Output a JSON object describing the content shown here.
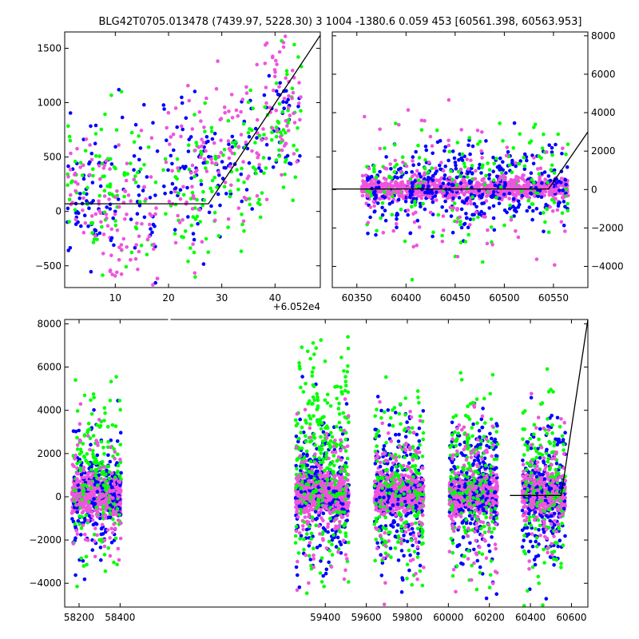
{
  "title": "BLG42T0705.013478 (7439.97, 5228.30)    3 1004 -1380.6 0.059 453 [60561.398, 60563.953]",
  "colors": {
    "green": "#00ff00",
    "blue": "#0000ff",
    "pink": "#ee55dd",
    "model": "#000000"
  },
  "chart_data": [
    {
      "panel": "zoom",
      "type": "scatter",
      "title": "",
      "x_offset_label": "+6.052e4",
      "xlim": [
        0.5,
        48.5
      ],
      "ylim": [
        -700,
        1650
      ],
      "xticks": [
        10,
        20,
        30,
        40
      ],
      "yticks": [
        -500,
        0,
        500,
        1000,
        1500
      ],
      "y_axis_side": "left",
      "point_clusters": [
        {
          "series": "blue",
          "x": [
            1,
            9
          ],
          "y_mean": 150,
          "y_sd": 300,
          "count": 55
        },
        {
          "series": "green",
          "x": [
            1,
            9
          ],
          "y_mean": 200,
          "y_sd": 350,
          "count": 45
        },
        {
          "series": "pink",
          "x": [
            1,
            9
          ],
          "y_mean": 80,
          "y_sd": 300,
          "count": 45
        },
        {
          "series": "blue",
          "x": [
            9,
            18
          ],
          "y_mean": 150,
          "y_sd": 350,
          "count": 45
        },
        {
          "series": "green",
          "x": [
            9,
            18
          ],
          "y_mean": 150,
          "y_sd": 350,
          "count": 40
        },
        {
          "series": "pink",
          "x": [
            9,
            18
          ],
          "y_mean": -100,
          "y_sd": 300,
          "count": 55
        },
        {
          "series": "blue",
          "x": [
            19,
            28
          ],
          "y_mean": 350,
          "y_sd": 350,
          "count": 55
        },
        {
          "series": "green",
          "x": [
            19,
            28
          ],
          "y_mean": 200,
          "y_sd": 350,
          "count": 50
        },
        {
          "series": "pink",
          "x": [
            19,
            28
          ],
          "y_mean": 300,
          "y_sd": 350,
          "count": 50
        },
        {
          "series": "blue",
          "x": [
            28,
            38
          ],
          "y_mean": 450,
          "y_sd": 300,
          "count": 45
        },
        {
          "series": "green",
          "x": [
            28,
            38
          ],
          "y_mean": 400,
          "y_sd": 350,
          "count": 60
        },
        {
          "series": "pink",
          "x": [
            28,
            38
          ],
          "y_mean": 600,
          "y_sd": 350,
          "count": 55
        },
        {
          "series": "blue",
          "x": [
            38,
            45
          ],
          "y_mean": 900,
          "y_sd": 350,
          "count": 35
        },
        {
          "series": "green",
          "x": [
            38,
            45
          ],
          "y_mean": 800,
          "y_sd": 350,
          "count": 45
        },
        {
          "series": "pink",
          "x": [
            38,
            45
          ],
          "y_mean": 1050,
          "y_sd": 350,
          "count": 55
        }
      ],
      "model_line": {
        "x": [
          0.5,
          27.5,
          48.5
        ],
        "y": [
          70,
          70,
          1620
        ]
      }
    },
    {
      "panel": "season",
      "type": "scatter",
      "title": "",
      "xlim": [
        60325,
        60585
      ],
      "ylim": [
        -5100,
        8200
      ],
      "xticks": [
        60350,
        60400,
        60450,
        60500,
        60550
      ],
      "yticks": [
        -4000,
        -2000,
        0,
        2000,
        4000,
        6000,
        8000
      ],
      "y_axis_side": "right",
      "point_clusters": [
        {
          "series": "pink",
          "x": [
            60355,
            60565
          ],
          "y_mean": 50,
          "y_sd": 280,
          "count": 900
        },
        {
          "series": "blue",
          "x": [
            60360,
            60565
          ],
          "y_mean": 100,
          "y_sd": 1100,
          "count": 380
        },
        {
          "series": "green",
          "x": [
            60360,
            60565
          ],
          "y_mean": 300,
          "y_sd": 1800,
          "count": 160
        },
        {
          "series": "pink",
          "x": [
            60355,
            60565
          ],
          "y_mean": 0,
          "y_sd": 1500,
          "count": 140
        }
      ],
      "model_line": {
        "x": [
          60325,
          60545,
          60585
        ],
        "y": [
          30,
          30,
          3000
        ]
      }
    },
    {
      "panel": "full",
      "type": "scatter",
      "title": "",
      "xlim": [
        58130,
        60680
      ],
      "ylim": [
        -5100,
        8200
      ],
      "xticks": [
        58200,
        58400,
        59400,
        59600,
        59800,
        60000,
        60200,
        60400,
        60600
      ],
      "yticks": [
        -4000,
        -2000,
        0,
        2000,
        4000,
        6000,
        8000
      ],
      "y_axis_side": "left",
      "axis_break_x": 58400,
      "point_clusters": [
        {
          "series": "pink",
          "x": [
            58165,
            58405
          ],
          "y_mean": 80,
          "y_sd": 380,
          "count": 620
        },
        {
          "series": "blue",
          "x": [
            58165,
            58405
          ],
          "y_mean": 300,
          "y_sd": 1500,
          "count": 200
        },
        {
          "series": "green",
          "x": [
            58165,
            58405
          ],
          "y_mean": 800,
          "y_sd": 2000,
          "count": 180
        },
        {
          "series": "pink",
          "x": [
            58165,
            58405
          ],
          "y_mean": 0,
          "y_sd": 1500,
          "count": 110
        },
        {
          "series": "pink",
          "x": [
            59255,
            59515
          ],
          "y_mean": 100,
          "y_sd": 420,
          "count": 650
        },
        {
          "series": "blue",
          "x": [
            59255,
            59515
          ],
          "y_mean": 300,
          "y_sd": 1800,
          "count": 230
        },
        {
          "series": "green",
          "x": [
            59255,
            59515
          ],
          "y_mean": 1500,
          "y_sd": 2600,
          "count": 300
        },
        {
          "series": "pink",
          "x": [
            59255,
            59515
          ],
          "y_mean": 0,
          "y_sd": 1700,
          "count": 130
        },
        {
          "series": "pink",
          "x": [
            59640,
            59880
          ],
          "y_mean": 100,
          "y_sd": 420,
          "count": 600
        },
        {
          "series": "blue",
          "x": [
            59640,
            59880
          ],
          "y_mean": 200,
          "y_sd": 1700,
          "count": 230
        },
        {
          "series": "green",
          "x": [
            59640,
            59880
          ],
          "y_mean": 500,
          "y_sd": 2200,
          "count": 200
        },
        {
          "series": "pink",
          "x": [
            59640,
            59880
          ],
          "y_mean": 0,
          "y_sd": 1700,
          "count": 120
        },
        {
          "series": "pink",
          "x": [
            60005,
            60240
          ],
          "y_mean": 100,
          "y_sd": 420,
          "count": 600
        },
        {
          "series": "blue",
          "x": [
            60005,
            60240
          ],
          "y_mean": 400,
          "y_sd": 1600,
          "count": 250
        },
        {
          "series": "green",
          "x": [
            60005,
            60240
          ],
          "y_mean": 600,
          "y_sd": 2100,
          "count": 180
        },
        {
          "series": "pink",
          "x": [
            60005,
            60240
          ],
          "y_mean": 0,
          "y_sd": 1600,
          "count": 120
        },
        {
          "series": "pink",
          "x": [
            60360,
            60570
          ],
          "y_mean": 100,
          "y_sd": 420,
          "count": 520
        },
        {
          "series": "blue",
          "x": [
            60360,
            60570
          ],
          "y_mean": 200,
          "y_sd": 1700,
          "count": 230
        },
        {
          "series": "green",
          "x": [
            60360,
            60570
          ],
          "y_mean": 500,
          "y_sd": 2000,
          "count": 160
        },
        {
          "series": "pink",
          "x": [
            60360,
            60570
          ],
          "y_mean": 0,
          "y_sd": 1600,
          "count": 110
        }
      ],
      "model_line": {
        "x": [
          60300,
          60550,
          60680
        ],
        "y": [
          60,
          60,
          8200
        ]
      }
    }
  ]
}
